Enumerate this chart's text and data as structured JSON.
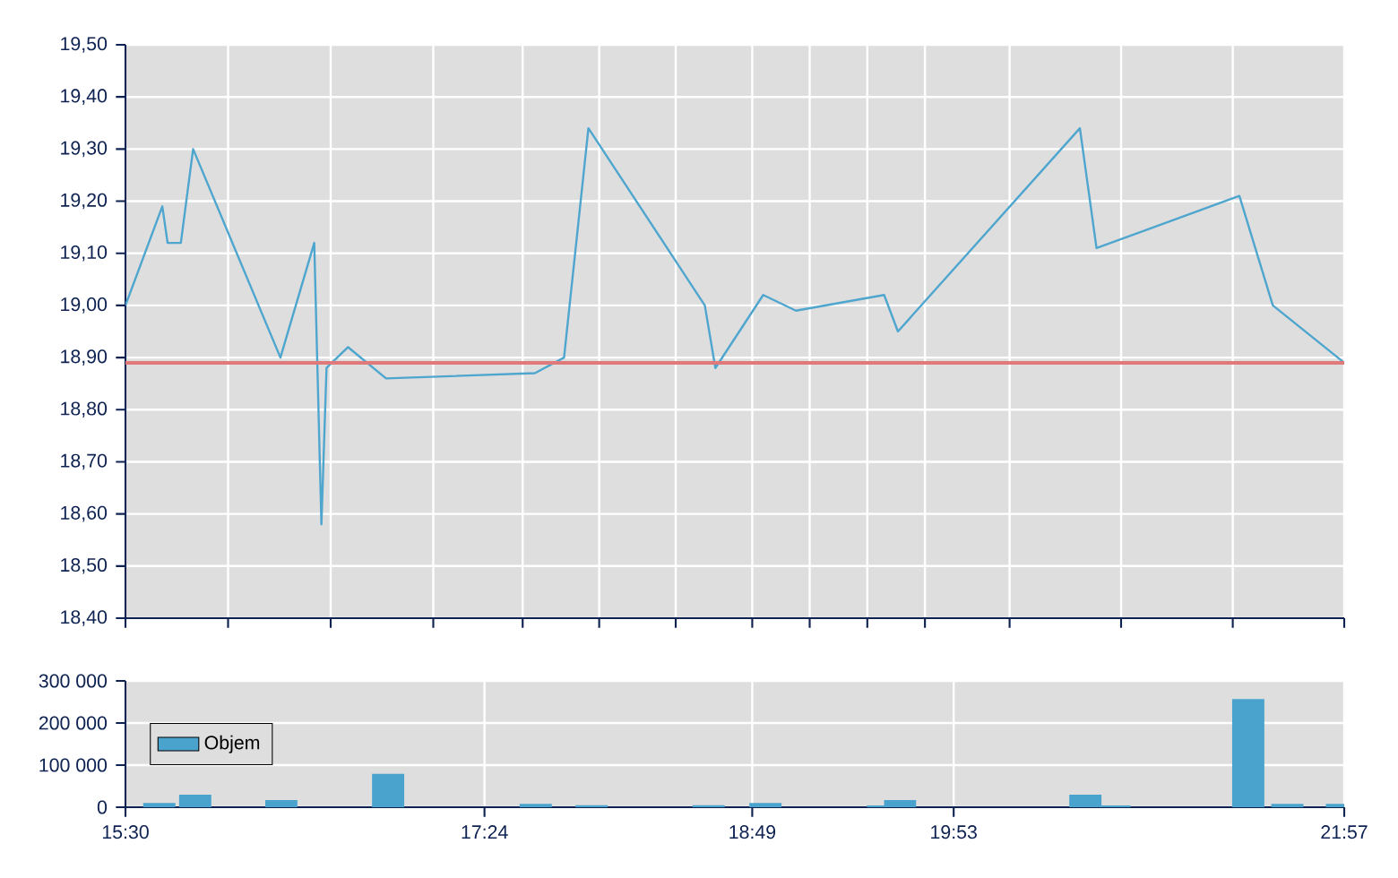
{
  "chart_data": [
    {
      "type": "line",
      "color": "#4ea6cf",
      "x": [
        15.5,
        15.695,
        15.723,
        15.793,
        15.858,
        16.32,
        16.499,
        16.537,
        16.564,
        16.678,
        16.879,
        17.667,
        17.821,
        17.95,
        18.566,
        18.622,
        18.875,
        19.048,
        19.515,
        19.588,
        20.551,
        20.639,
        21.395,
        21.572,
        21.95
      ],
      "values": [
        19.0,
        19.19,
        19.12,
        19.12,
        19.3,
        18.9,
        19.12,
        18.58,
        18.88,
        18.92,
        18.86,
        18.87,
        18.9,
        19.34,
        19.0,
        18.88,
        19.02,
        18.99,
        19.02,
        18.95,
        19.34,
        19.11,
        19.21,
        19.0,
        18.89
      ],
      "ref_lines": [
        {
          "axis": "y",
          "value": 18.89,
          "color": "#e07a7a"
        }
      ],
      "xlim": [
        15.5,
        21.95
      ],
      "xticks": [
        {
          "value": 15.5,
          "label": null
        },
        {
          "value": 16.043,
          "label": null
        },
        {
          "value": 16.586,
          "label": null
        },
        {
          "value": 17.129,
          "label": null
        },
        {
          "value": 17.602,
          "label": null
        },
        {
          "value": 18.007,
          "label": null
        },
        {
          "value": 18.412,
          "label": null
        },
        {
          "value": 18.817,
          "label": null
        },
        {
          "value": 19.121,
          "label": null
        },
        {
          "value": 19.426,
          "label": null
        },
        {
          "value": 19.731,
          "label": null
        },
        {
          "value": 20.179,
          "label": null
        },
        {
          "value": 20.769,
          "label": null
        },
        {
          "value": 21.36,
          "label": null
        },
        {
          "value": 21.95,
          "label": null
        }
      ],
      "ylim": [
        18.4,
        19.5
      ],
      "yticks": [
        {
          "value": 18.4,
          "label": "18,40"
        },
        {
          "value": 18.5,
          "label": "18,50"
        },
        {
          "value": 18.6,
          "label": "18,60"
        },
        {
          "value": 18.7,
          "label": "18,70"
        },
        {
          "value": 18.8,
          "label": "18,80"
        },
        {
          "value": 18.9,
          "label": "18,90"
        },
        {
          "value": 19.0,
          "label": "19,00"
        },
        {
          "value": 19.1,
          "label": "19,10"
        },
        {
          "value": 19.2,
          "label": "19,20"
        },
        {
          "value": 19.3,
          "label": "19,30"
        },
        {
          "value": 19.4,
          "label": "19,40"
        },
        {
          "value": 19.5,
          "label": "19,50"
        }
      ],
      "tick_labels": "y",
      "grid": true
    },
    {
      "type": "bar",
      "series": [
        {
          "name": "Objem",
          "color": "#4aa3cc",
          "x": [
            15.679,
            15.869,
            16.325,
            16.89,
            17.671,
            17.967,
            18.586,
            18.887,
            19.509,
            19.6,
            20.58,
            20.734,
            21.442,
            21.649,
            21.938
          ],
          "values": [
            10000,
            30000,
            17000,
            79000,
            8000,
            5000,
            5000,
            10000,
            4000,
            17000,
            30000,
            4000,
            257000,
            8000,
            8000
          ]
        }
      ],
      "xlim": [
        15.5,
        21.95
      ],
      "xticks": [
        {
          "value": 15.5,
          "label": "15:30"
        },
        {
          "value": 17.4,
          "label": "17:24"
        },
        {
          "value": 18.817,
          "label": "18:49"
        },
        {
          "value": 19.883,
          "label": "19:53"
        },
        {
          "value": 21.95,
          "label": "21:57"
        }
      ],
      "ylim": [
        0,
        300000
      ],
      "yticks": [
        0,
        {
          "value": 100000,
          "label": "100 000"
        },
        {
          "value": 200000,
          "label": "200 000"
        },
        {
          "value": 300000,
          "label": "300 000"
        }
      ],
      "grid": true,
      "legend": "left"
    }
  ]
}
